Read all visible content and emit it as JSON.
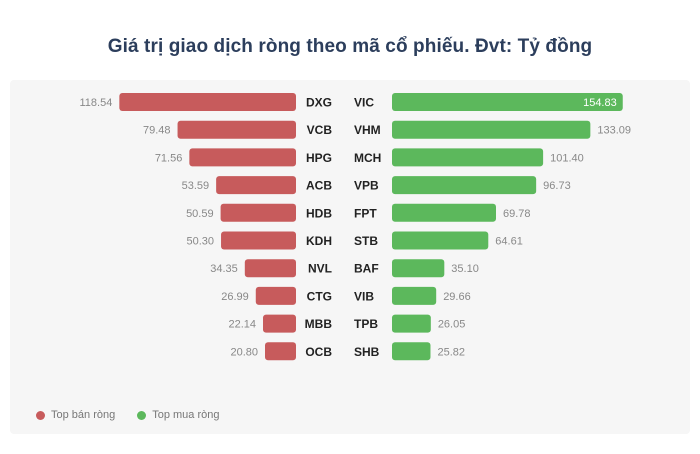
{
  "title": "Giá trị giao dịch ròng theo mã cổ phiếu. Đvt: Tỷ đồng",
  "colors": {
    "sell": "#c75b5c",
    "buy": "#5cb85c"
  },
  "legend": {
    "sell": "Top bán ròng",
    "buy": "Top mua ròng"
  },
  "chart_data": {
    "type": "bar",
    "title": "Giá trị giao dịch ròng theo mã cổ phiếu. Đvt: Tỷ đồng",
    "xlim": [
      0,
      155
    ],
    "series": [
      {
        "name": "Top bán ròng",
        "categories": [
          "DXG",
          "VCB",
          "HPG",
          "ACB",
          "HDB",
          "KDH",
          "NVL",
          "CTG",
          "MBB",
          "OCB"
        ],
        "values": [
          118.54,
          79.48,
          71.56,
          53.59,
          50.59,
          50.3,
          34.35,
          26.99,
          22.14,
          20.8
        ],
        "labels": [
          "118.54",
          "79.48",
          "71.56",
          "53.59",
          "50.59",
          "50.30",
          "34.35",
          "26.99",
          "22.14",
          "20.80"
        ]
      },
      {
        "name": "Top mua ròng",
        "categories": [
          "VIC",
          "VHM",
          "MCH",
          "VPB",
          "FPT",
          "STB",
          "BAF",
          "VIB",
          "TPB",
          "SHB"
        ],
        "values": [
          154.83,
          133.09,
          101.4,
          96.73,
          69.78,
          64.61,
          35.1,
          29.66,
          26.05,
          25.82
        ],
        "labels": [
          "154.83",
          "133.09",
          "101.40",
          "96.73",
          "69.78",
          "64.61",
          "35.10",
          "29.66",
          "26.05",
          "25.82"
        ]
      }
    ]
  }
}
